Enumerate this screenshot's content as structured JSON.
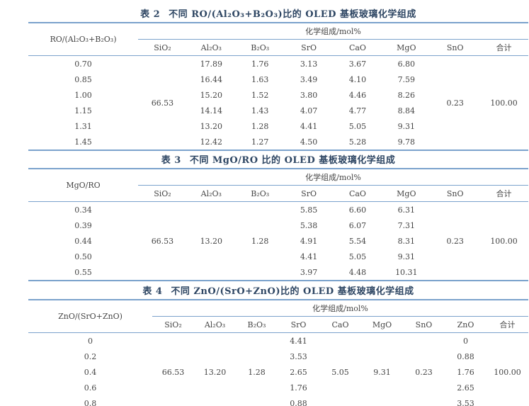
{
  "page": {
    "background": "#ffffff",
    "rule_color": "#7ba2cc",
    "title_color": "#2e4663",
    "text_color": "#454545"
  },
  "tables": [
    {
      "title_label": "表 2",
      "title_text": "不同 RO/(Al₂O₃+B₂O₃)比的 OLED 基板玻璃化学组成",
      "stub_header": "RO/(Al₂O₃+B₂O₃)",
      "span_header": "化学组成/mol%",
      "stub_width": 155,
      "columns": [
        {
          "label": "SiO₂",
          "merged": "66.53"
        },
        {
          "label": "Al₂O₃"
        },
        {
          "label": "B₂O₃"
        },
        {
          "label": "SrO"
        },
        {
          "label": "CaO"
        },
        {
          "label": "MgO"
        },
        {
          "label": "SnO",
          "merged": "0.23"
        },
        {
          "label": "合计",
          "merged": "100.00"
        }
      ],
      "rows": [
        {
          "ratio": "0.70",
          "values": [
            "",
            "17.89",
            "1.76",
            "3.13",
            "3.67",
            "6.80",
            "",
            ""
          ]
        },
        {
          "ratio": "0.85",
          "values": [
            "",
            "16.44",
            "1.63",
            "3.49",
            "4.10",
            "7.59",
            "",
            ""
          ]
        },
        {
          "ratio": "1.00",
          "values": [
            "",
            "15.20",
            "1.52",
            "3.80",
            "4.46",
            "8.26",
            "",
            ""
          ]
        },
        {
          "ratio": "1.15",
          "values": [
            "",
            "14.14",
            "1.43",
            "4.07",
            "4.77",
            "8.84",
            "",
            ""
          ]
        },
        {
          "ratio": "1.31",
          "values": [
            "",
            "13.20",
            "1.28",
            "4.41",
            "5.05",
            "9.31",
            "",
            ""
          ]
        },
        {
          "ratio": "1.45",
          "values": [
            "",
            "12.42",
            "1.27",
            "4.50",
            "5.28",
            "9.78",
            "",
            ""
          ]
        }
      ]
    },
    {
      "title_label": "表 3",
      "title_text": "不同 MgO/RO 比的 OLED 基板玻璃化学组成",
      "stub_header": "MgO/RO",
      "span_header": "化学组成/mol%",
      "stub_width": 155,
      "columns": [
        {
          "label": "SiO₂",
          "merged": "66.53"
        },
        {
          "label": "Al₂O₃",
          "merged": "13.20"
        },
        {
          "label": "B₂O₃",
          "merged": "1.28"
        },
        {
          "label": "SrO"
        },
        {
          "label": "CaO"
        },
        {
          "label": "MgO"
        },
        {
          "label": "SnO",
          "merged": "0.23"
        },
        {
          "label": "合计",
          "merged": "100.00"
        }
      ],
      "rows": [
        {
          "ratio": "0.34",
          "values": [
            "",
            "",
            "",
            "5.85",
            "6.60",
            "6.31",
            "",
            ""
          ]
        },
        {
          "ratio": "0.39",
          "values": [
            "",
            "",
            "",
            "5.38",
            "6.07",
            "7.31",
            "",
            ""
          ]
        },
        {
          "ratio": "0.44",
          "values": [
            "",
            "",
            "",
            "4.91",
            "5.54",
            "8.31",
            "",
            ""
          ]
        },
        {
          "ratio": "0.50",
          "values": [
            "",
            "",
            "",
            "4.41",
            "5.05",
            "9.31",
            "",
            ""
          ]
        },
        {
          "ratio": "0.55",
          "values": [
            "",
            "",
            "",
            "3.97",
            "4.48",
            "10.31",
            "",
            ""
          ]
        }
      ]
    },
    {
      "title_label": "表 4",
      "title_text": "不同 ZnO/(SrO+ZnO)比的 OLED 基板玻璃化学组成",
      "stub_header": "ZnO/(SrO+ZnO)",
      "span_header": "化学组成/mol%",
      "stub_width": 175,
      "columns": [
        {
          "label": "SiO₂",
          "merged": "66.53"
        },
        {
          "label": "Al₂O₃",
          "merged": "13.20"
        },
        {
          "label": "B₂O₃",
          "merged": "1.28"
        },
        {
          "label": "SrO"
        },
        {
          "label": "CaO",
          "merged": "5.05"
        },
        {
          "label": "MgO",
          "merged": "9.31"
        },
        {
          "label": "SnO",
          "merged": "0.23"
        },
        {
          "label": "ZnO"
        },
        {
          "label": "合计",
          "merged": "100.00"
        }
      ],
      "rows": [
        {
          "ratio": "0",
          "values": [
            "",
            "",
            "",
            "4.41",
            "",
            "",
            "",
            "0",
            ""
          ]
        },
        {
          "ratio": "0.2",
          "values": [
            "",
            "",
            "",
            "3.53",
            "",
            "",
            "",
            "0.88",
            ""
          ]
        },
        {
          "ratio": "0.4",
          "values": [
            "",
            "",
            "",
            "2.65",
            "",
            "",
            "",
            "1.76",
            ""
          ]
        },
        {
          "ratio": "0.6",
          "values": [
            "",
            "",
            "",
            "1.76",
            "",
            "",
            "",
            "2.65",
            ""
          ]
        },
        {
          "ratio": "0.8",
          "values": [
            "",
            "",
            "",
            "0.88",
            "",
            "",
            "",
            "3.53",
            ""
          ]
        }
      ]
    }
  ]
}
